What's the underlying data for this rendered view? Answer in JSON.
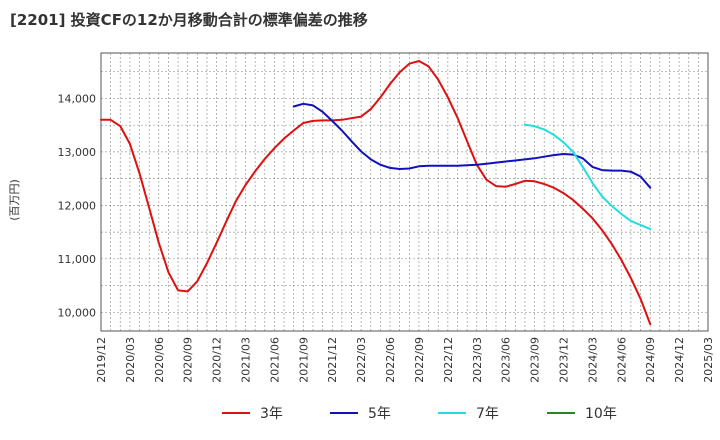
{
  "chart_data": {
    "type": "line",
    "title": "[2201]  投資CFの12か月移動合計の標準偏差の推移",
    "ylabel": "(百万円)",
    "xlabel": "",
    "ylim": [
      9650,
      14850
    ],
    "y_ticks": [
      10000,
      11000,
      12000,
      13000,
      14000
    ],
    "y_tick_labels": [
      "10,000",
      "11,000",
      "12,000",
      "13,000",
      "14,000"
    ],
    "x_range": [
      "2019-12",
      "2025-03"
    ],
    "x_ticks": [
      "2019/12",
      "2020/03",
      "2020/06",
      "2020/09",
      "2020/12",
      "2021/03",
      "2021/06",
      "2021/09",
      "2021/12",
      "2022/03",
      "2022/06",
      "2022/09",
      "2022/12",
      "2023/03",
      "2023/06",
      "2023/09",
      "2023/12",
      "2024/03",
      "2024/06",
      "2024/09",
      "2024/12",
      "2025/03"
    ],
    "grid": true,
    "legend_position": "bottom",
    "series": [
      {
        "name": "3年",
        "color": "#dd1111",
        "x": [
          "2019-12",
          "2020-01",
          "2020-02",
          "2020-03",
          "2020-04",
          "2020-05",
          "2020-06",
          "2020-07",
          "2020-08",
          "2020-09",
          "2020-10",
          "2020-11",
          "2020-12",
          "2021-01",
          "2021-02",
          "2021-03",
          "2021-04",
          "2021-05",
          "2021-06",
          "2021-07",
          "2021-08",
          "2021-09",
          "2021-10",
          "2021-11",
          "2021-12",
          "2022-01",
          "2022-02",
          "2022-03",
          "2022-04",
          "2022-05",
          "2022-06",
          "2022-07",
          "2022-08",
          "2022-09",
          "2022-10",
          "2022-11",
          "2022-12",
          "2023-01",
          "2023-02",
          "2023-03",
          "2023-04",
          "2023-05",
          "2023-06",
          "2023-07",
          "2023-08",
          "2023-09",
          "2023-10",
          "2023-11",
          "2023-12",
          "2024-01",
          "2024-02",
          "2024-03",
          "2024-04",
          "2024-05",
          "2024-06",
          "2024-07",
          "2024-08",
          "2024-09"
        ],
        "values": [
          13600,
          13600,
          13480,
          13150,
          12600,
          11950,
          11300,
          10750,
          10410,
          10390,
          10580,
          10920,
          11300,
          11700,
          12080,
          12380,
          12640,
          12870,
          13070,
          13250,
          13400,
          13540,
          13580,
          13590,
          13590,
          13600,
          13630,
          13660,
          13800,
          14020,
          14270,
          14490,
          14650,
          14700,
          14600,
          14350,
          14020,
          13640,
          13200,
          12760,
          12480,
          12360,
          12350,
          12400,
          12460,
          12450,
          12400,
          12330,
          12230,
          12100,
          11940,
          11760,
          11540,
          11280,
          10980,
          10640,
          10250,
          9780
        ]
      },
      {
        "name": "5年",
        "color": "#1111bb",
        "x": [
          "2021-08",
          "2021-09",
          "2021-10",
          "2021-11",
          "2021-12",
          "2022-01",
          "2022-02",
          "2022-03",
          "2022-04",
          "2022-05",
          "2022-06",
          "2022-07",
          "2022-08",
          "2022-09",
          "2022-10",
          "2022-11",
          "2022-12",
          "2023-01",
          "2023-02",
          "2023-03",
          "2023-04",
          "2023-05",
          "2023-06",
          "2023-07",
          "2023-08",
          "2023-09",
          "2023-10",
          "2023-11",
          "2023-12",
          "2024-01",
          "2024-02",
          "2024-03",
          "2024-04",
          "2024-05",
          "2024-06",
          "2024-07",
          "2024-08",
          "2024-09"
        ],
        "values": [
          13850,
          13900,
          13870,
          13750,
          13580,
          13400,
          13200,
          13010,
          12860,
          12760,
          12700,
          12680,
          12690,
          12730,
          12740,
          12740,
          12740,
          12740,
          12750,
          12760,
          12780,
          12800,
          12820,
          12840,
          12860,
          12880,
          12910,
          12940,
          12960,
          12950,
          12880,
          12720,
          12660,
          12650,
          12650,
          12630,
          12540,
          12330
        ]
      },
      {
        "name": "7年",
        "color": "#22dddd",
        "x": [
          "2023-08",
          "2023-09",
          "2023-10",
          "2023-11",
          "2023-12",
          "2024-01",
          "2024-02",
          "2024-03",
          "2024-04",
          "2024-05",
          "2024-06",
          "2024-07",
          "2024-08",
          "2024-09"
        ],
        "values": [
          13510,
          13480,
          13420,
          13320,
          13180,
          13000,
          12720,
          12420,
          12170,
          11990,
          11840,
          11710,
          11630,
          11560
        ]
      },
      {
        "name": "10年",
        "color": "#228822",
        "x": [],
        "values": []
      }
    ]
  }
}
